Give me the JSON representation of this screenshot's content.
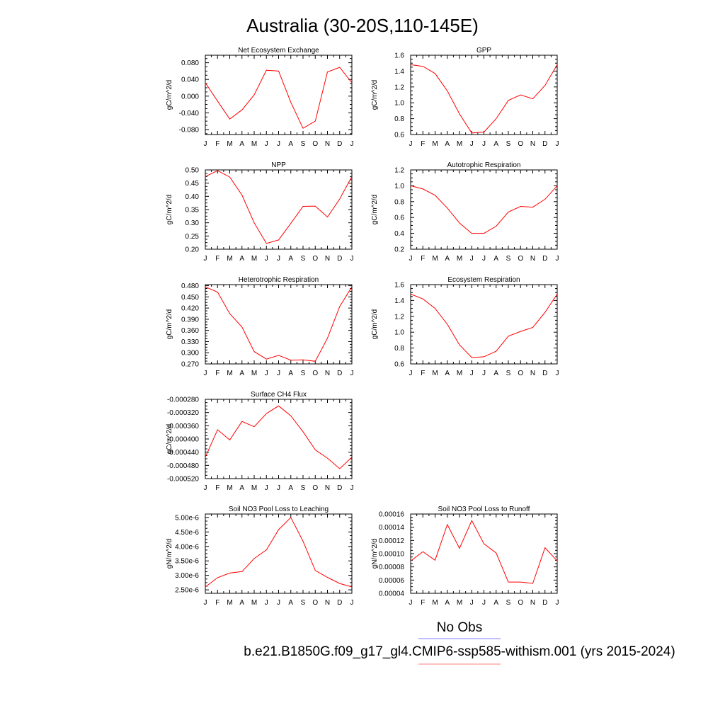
{
  "figure": {
    "title": "Australia (30-20S,110-145E)",
    "legend": {
      "obs_label": "No Obs",
      "model_label": "b.e21.B1850G.f09_g17_gl4.CMIP6-ssp585-withism.001 (yrs 2015-2024)",
      "obs_color": "#7f7fff",
      "model_color": "#ff7f7f"
    }
  },
  "chart_data": [
    {
      "type": "line",
      "title": "Net Ecosystem Exchange",
      "ylabel": "gC/m^2/d",
      "categories": [
        "J",
        "F",
        "M",
        "A",
        "M",
        "J",
        "J",
        "A",
        "S",
        "O",
        "N",
        "D",
        "J"
      ],
      "yticks": [
        "0.080",
        "0.040",
        "0.000",
        "-0.040",
        "-0.080"
      ],
      "ylim": [
        -0.092,
        0.098
      ],
      "series": [
        {
          "color": "#ff0000",
          "values": [
            0.032,
            -0.012,
            -0.055,
            -0.033,
            0.003,
            0.062,
            0.06,
            -0.015,
            -0.077,
            -0.06,
            0.058,
            0.069,
            0.032
          ]
        }
      ]
    },
    {
      "type": "line",
      "title": "GPP",
      "ylabel": "gC/m^2/d",
      "categories": [
        "J",
        "F",
        "M",
        "A",
        "M",
        "J",
        "J",
        "A",
        "S",
        "O",
        "N",
        "D",
        "J"
      ],
      "yticks": [
        "1.6",
        "1.4",
        "1.2",
        "1.0",
        "0.8",
        "0.6"
      ],
      "ylim": [
        0.6,
        1.6
      ],
      "series": [
        {
          "color": "#ff0000",
          "values": [
            1.48,
            1.46,
            1.37,
            1.15,
            0.86,
            0.62,
            0.63,
            0.8,
            1.03,
            1.1,
            1.05,
            1.22,
            1.48
          ]
        }
      ]
    },
    {
      "type": "line",
      "title": "NPP",
      "ylabel": "gC/m^2/d",
      "categories": [
        "J",
        "F",
        "M",
        "A",
        "M",
        "J",
        "J",
        "A",
        "S",
        "O",
        "N",
        "D",
        "J"
      ],
      "yticks": [
        "0.50",
        "0.45",
        "0.40",
        "0.35",
        "0.30",
        "0.25",
        "0.20"
      ],
      "ylim": [
        0.2,
        0.5
      ],
      "series": [
        {
          "color": "#ff0000",
          "values": [
            0.475,
            0.497,
            0.473,
            0.405,
            0.3,
            0.222,
            0.235,
            0.298,
            0.362,
            0.363,
            0.322,
            0.39,
            0.475
          ]
        }
      ]
    },
    {
      "type": "line",
      "title": "Autotrophic Respiration",
      "ylabel": "gC/m^2/d",
      "categories": [
        "J",
        "F",
        "M",
        "A",
        "M",
        "J",
        "J",
        "A",
        "S",
        "O",
        "N",
        "D",
        "J"
      ],
      "yticks": [
        "1.2",
        "1.0",
        "0.8",
        "0.6",
        "0.4",
        "0.2"
      ],
      "ylim": [
        0.2,
        1.2
      ],
      "series": [
        {
          "color": "#ff0000",
          "values": [
            1.0,
            0.96,
            0.88,
            0.72,
            0.53,
            0.4,
            0.4,
            0.49,
            0.67,
            0.74,
            0.73,
            0.83,
            1.0
          ]
        }
      ]
    },
    {
      "type": "line",
      "title": "Heterotrophic Respiration",
      "ylabel": "gC/m^2/d",
      "categories": [
        "J",
        "F",
        "M",
        "A",
        "M",
        "J",
        "J",
        "A",
        "S",
        "O",
        "N",
        "D",
        "J"
      ],
      "yticks": [
        "0.480",
        "0.450",
        "0.420",
        "0.390",
        "0.360",
        "0.330",
        "0.300",
        "0.270"
      ],
      "ylim": [
        0.27,
        0.483
      ],
      "series": [
        {
          "color": "#ff0000",
          "values": [
            0.477,
            0.463,
            0.405,
            0.369,
            0.303,
            0.283,
            0.293,
            0.28,
            0.281,
            0.277,
            0.339,
            0.424,
            0.477
          ]
        }
      ]
    },
    {
      "type": "line",
      "title": "Ecosystem Respiration",
      "ylabel": "gC/m^2/d",
      "categories": [
        "J",
        "F",
        "M",
        "A",
        "M",
        "J",
        "J",
        "A",
        "S",
        "O",
        "N",
        "D",
        "J"
      ],
      "yticks": [
        "1.6",
        "1.4",
        "1.2",
        "1.0",
        "0.8",
        "0.6"
      ],
      "ylim": [
        0.6,
        1.6
      ],
      "series": [
        {
          "color": "#ff0000",
          "values": [
            1.48,
            1.42,
            1.3,
            1.1,
            0.84,
            0.68,
            0.69,
            0.76,
            0.95,
            1.01,
            1.06,
            1.25,
            1.48
          ]
        }
      ]
    },
    {
      "type": "line",
      "title": "Surface CH4 Flux",
      "ylabel": "gC/m^2/d",
      "categories": [
        "J",
        "F",
        "M",
        "A",
        "M",
        "J",
        "J",
        "A",
        "S",
        "O",
        "N",
        "D",
        "J"
      ],
      "yticks": [
        "-0.000280",
        "-0.000320",
        "-0.000360",
        "-0.000400",
        "-0.000440",
        "-0.000480",
        "-0.000520"
      ],
      "ylim": [
        -0.00052,
        -0.00028
      ],
      "series": [
        {
          "color": "#ff0000",
          "values": [
            -0.000455,
            -0.000372,
            -0.000403,
            -0.000347,
            -0.000363,
            -0.000323,
            -0.0003,
            -0.00033,
            -0.000378,
            -0.000433,
            -0.000458,
            -0.00049,
            -0.000455
          ]
        }
      ]
    },
    {
      "type": "line",
      "title": "Soil NO3 Pool Loss to Leaching",
      "ylabel": "gN/m^2/d",
      "categories": [
        "J",
        "F",
        "M",
        "A",
        "M",
        "J",
        "J",
        "A",
        "S",
        "O",
        "N",
        "D",
        "J"
      ],
      "yticks": [
        "5.00e-6",
        "4.50e-6",
        "4.00e-6",
        "3.50e-6",
        "3.00e-6",
        "2.50e-6"
      ],
      "ylim": [
        2.38e-06,
        5.12e-06
      ],
      "series": [
        {
          "color": "#ff0000",
          "values": [
            2.6e-06,
            2.92e-06,
            3.08e-06,
            3.13e-06,
            3.58e-06,
            3.88e-06,
            4.58e-06,
            5e-06,
            4.18e-06,
            3.17e-06,
            2.93e-06,
            2.72e-06,
            2.6e-06
          ]
        }
      ]
    },
    {
      "type": "line",
      "title": "Soil NO3 Pool Loss to Runoff",
      "ylabel": "gN/m^2/d",
      "categories": [
        "J",
        "F",
        "M",
        "A",
        "M",
        "J",
        "J",
        "A",
        "S",
        "O",
        "N",
        "D",
        "J"
      ],
      "yticks": [
        "0.00016",
        "0.00014",
        "0.00012",
        "0.00010",
        "0.00008",
        "0.00006",
        "0.00004"
      ],
      "ylim": [
        4e-05,
        0.00016
      ],
      "series": [
        {
          "color": "#ff0000",
          "values": [
            8.9e-05,
            0.000103,
            9e-05,
            0.000144,
            0.000108,
            0.00015,
            0.000115,
            0.000101,
            5.7e-05,
            5.7e-05,
            5.5e-05,
            0.000109,
            8.9e-05
          ]
        }
      ]
    }
  ]
}
